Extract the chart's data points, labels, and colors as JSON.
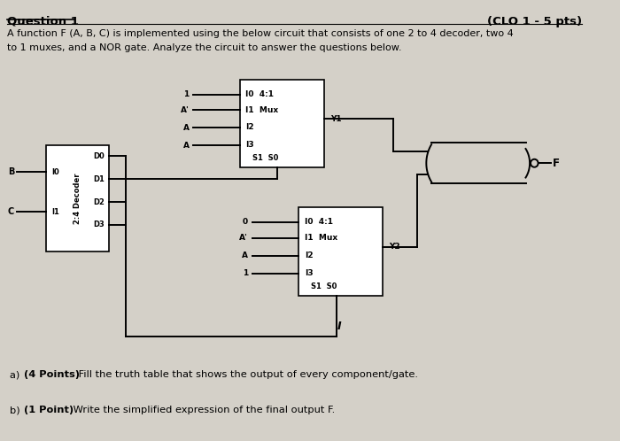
{
  "bg_color": "#d4d0c8",
  "title": "Question 1",
  "clo_text": "(CLO 1 - 5 pts)",
  "description_line1": "A function F (A, B, C) is implemented using the below circuit that consists of one 2 to 4 decoder, two 4",
  "description_line2": "to 1 muxes, and a NOR gate. Analyze the circuit to answer the questions below.",
  "mux1_inputs": [
    "1",
    "A'",
    "A",
    "A"
  ],
  "mux1_sel": "S1  S0",
  "mux1_out": "Y1",
  "mux2_inputs": [
    "0",
    "A'",
    "A",
    "1"
  ],
  "mux2_sel": "S1  S0",
  "mux2_out": "Y2",
  "decoder_inputs": [
    "B",
    "C"
  ],
  "decoder_in_labels": [
    "I0",
    "I1"
  ],
  "decoder_out_labels": [
    "D0",
    "D1",
    "D2",
    "D3"
  ],
  "decoder_label": "2:4 Decoder",
  "nor_out": "F",
  "q_a_bold": "(4 Points)",
  "q_a_rest": " Fill the truth table that shows the output of every component/gate.",
  "q_b_bold": "(1 Point)",
  "q_b_rest": " Write the simplified expression of the final output F."
}
